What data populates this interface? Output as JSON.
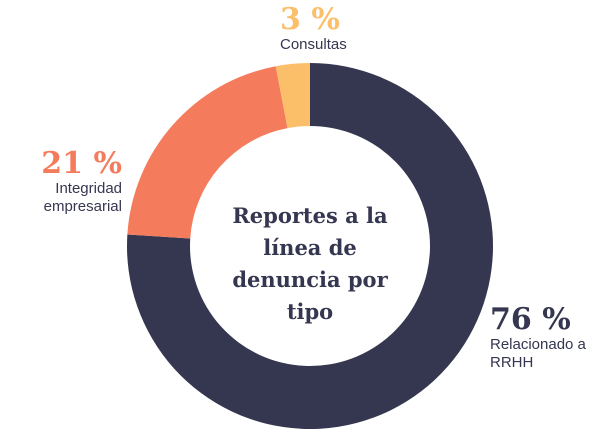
{
  "chart_data": {
    "type": "donut",
    "title": "Reportes a la línea de denuncia por tipo",
    "categories": [
      "Relacionado a RRHH",
      "Integridad empresarial",
      "Consultas"
    ],
    "values": [
      76,
      21,
      3
    ],
    "value_labels": [
      "76 %",
      "21 %",
      "3 %"
    ],
    "colors": [
      "#353650",
      "#f47c5c",
      "#fbbf6a"
    ]
  }
}
